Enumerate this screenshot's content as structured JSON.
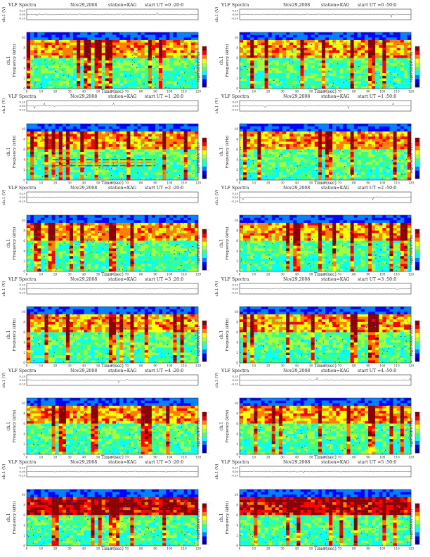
{
  "page": {
    "title": "VLF Spectra — station KAG, Nov 29 2008"
  },
  "common": {
    "header_prefix": "VLF Spectra",
    "date": "Nov29,2008",
    "station": "station=KAG",
    "ut_prefix": "start  UT =",
    "ch_label": "ch.1 (V)",
    "ch_ticks": [
      "0.20",
      "0.00",
      "-0.20"
    ],
    "ylabel_line1": "ch.1",
    "ylabel_line2": "Frequency  (kHz)",
    "xlabel": "Time  (sec)",
    "x_ticks": [
      "0",
      "10",
      "20",
      "30",
      "40",
      "50",
      "60",
      "70",
      "80",
      "90",
      "100",
      "110",
      "120"
    ],
    "y_ticks": [
      "0",
      "2",
      "4",
      "6",
      "8",
      "10"
    ],
    "cbar_label": "log(PSD)(V²/Hz)",
    "cbar_ticks": [
      "-",
      "-",
      "-"
    ],
    "colormap": [
      "#00008b",
      "#0000ff",
      "#0080ff",
      "#00ffff",
      "#40ff80",
      "#a0ff40",
      "#ffff00",
      "#ff8000",
      "#ff0000",
      "#8b0000"
    ]
  },
  "chart_data": [
    {
      "type": "heatmap",
      "start_ut": "0 :20:0",
      "x": [
        0,
        120
      ],
      "y": [
        0,
        11
      ],
      "xlabel": "Time (sec)",
      "ylabel": "Frequency (kHz)",
      "colorbar": "log(PSD)(V^2/Hz)"
    },
    {
      "type": "heatmap",
      "start_ut": "0 :50:0",
      "x": [
        0,
        120
      ],
      "y": [
        0,
        11
      ],
      "xlabel": "Time (sec)",
      "ylabel": "Frequency (kHz)",
      "colorbar": "log(PSD)(V^2/Hz)"
    },
    {
      "type": "heatmap",
      "start_ut": "1 :20:0",
      "x": [
        0,
        120
      ],
      "y": [
        0,
        11
      ],
      "xlabel": "Time (sec)",
      "ylabel": "Frequency (kHz)",
      "colorbar": "log(PSD)(V^2/Hz)"
    },
    {
      "type": "heatmap",
      "start_ut": "1 :50:0",
      "x": [
        0,
        120
      ],
      "y": [
        0,
        11
      ],
      "xlabel": "Time (sec)",
      "ylabel": "Frequency (kHz)",
      "colorbar": "log(PSD)(V^2/Hz)"
    },
    {
      "type": "heatmap",
      "start_ut": "2 :20:0",
      "x": [
        0,
        120
      ],
      "y": [
        0,
        11
      ],
      "xlabel": "Time (sec)",
      "ylabel": "Frequency (kHz)",
      "colorbar": "log(PSD)(V^2/Hz)"
    },
    {
      "type": "heatmap",
      "start_ut": "2 :50:0",
      "x": [
        0,
        120
      ],
      "y": [
        0,
        11
      ],
      "xlabel": "Time (sec)",
      "ylabel": "Frequency (kHz)",
      "colorbar": "log(PSD)(V^2/Hz)"
    },
    {
      "type": "heatmap",
      "start_ut": "3 :20:0",
      "x": [
        0,
        120
      ],
      "y": [
        0,
        11
      ],
      "xlabel": "Time (sec)",
      "ylabel": "Frequency (kHz)",
      "colorbar": "log(PSD)(V^2/Hz)"
    },
    {
      "type": "heatmap",
      "start_ut": "3 :50:0",
      "x": [
        0,
        120
      ],
      "y": [
        0,
        11
      ],
      "xlabel": "Time (sec)",
      "ylabel": "Frequency (kHz)",
      "colorbar": "log(PSD)(V^2/Hz)"
    },
    {
      "type": "heatmap",
      "start_ut": "4 :20:0",
      "x": [
        0,
        120
      ],
      "y": [
        0,
        11
      ],
      "xlabel": "Time (sec)",
      "ylabel": "Frequency (kHz)",
      "colorbar": "log(PSD)(V^2/Hz)"
    },
    {
      "type": "heatmap",
      "start_ut": "4 :50:0",
      "x": [
        0,
        120
      ],
      "y": [
        0,
        11
      ],
      "xlabel": "Time (sec)",
      "ylabel": "Frequency (kHz)",
      "colorbar": "log(PSD)(V^2/Hz)"
    },
    {
      "type": "heatmap",
      "start_ut": "5 :20:0",
      "x": [
        0,
        120
      ],
      "y": [
        0,
        11
      ],
      "xlabel": "Time (sec)",
      "ylabel": "Frequency (kHz)",
      "colorbar": "log(PSD)(V^2/Hz)"
    },
    {
      "type": "heatmap",
      "start_ut": "5 :50:0",
      "x": [
        0,
        120
      ],
      "y": [
        0,
        11
      ],
      "xlabel": "Time (sec)",
      "ylabel": "Frequency (kHz)",
      "colorbar": "log(PSD)(V^2/Hz)"
    }
  ]
}
